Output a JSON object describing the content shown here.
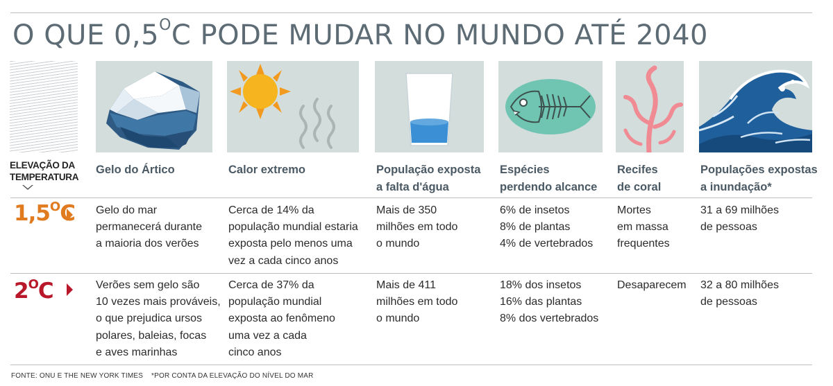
{
  "title": {
    "prefix": "O QUE 0,5",
    "sup": "O",
    "suffix": "C PODE MUDAR NO MUNDO ATÉ 2040"
  },
  "row_header": {
    "line1": "ELEVAÇÃO DA",
    "line2": "TEMPERATURA"
  },
  "columns": [
    {
      "line1": "Gelo do Ártico",
      "line2": "",
      "icon": "iceberg-icon"
    },
    {
      "line1": "Calor extremo",
      "line2": "",
      "icon": "sun-icon"
    },
    {
      "line1": "População exposta",
      "line2": "a falta d'água",
      "icon": "water-glass-icon"
    },
    {
      "line1": "Espécies",
      "line2": "perdendo alcance",
      "icon": "fish-skeleton-icon"
    },
    {
      "line1": "Recifes",
      "line2": "de coral",
      "icon": "coral-icon"
    },
    {
      "line1": "Populações expostas",
      "line2": "a inundação*",
      "icon": "wave-icon"
    }
  ],
  "rows": [
    {
      "label_num": "1,5",
      "label_sup": "O",
      "label_unit": "C",
      "color": "#e07b1f",
      "cells": [
        "Gelo do mar\npermanecerá durante\na maioria dos verões",
        "Cerca de 14% da\npopulação mundial estaria\nexposta pelo menos uma\nvez a cada cinco anos",
        "Mais de 350\nmilhões em todo\no mundo",
        "6% de insetos\n8% de plantas\n4% de vertebrados",
        "Mortes\nem massa\nfrequentes",
        "31 a 69 milhões\nde pessoas"
      ]
    },
    {
      "label_num": "2",
      "label_sup": "O",
      "label_unit": "C",
      "color": "#b8182a",
      "cells": [
        "Verões sem gelo são\n10 vezes mais prováveis,\no que prejudica ursos\npolares, baleias, focas\ne aves marinhas",
        "Cerca de 37% da\npopulação mundial\nexposta ao fenômeno\numa vez a cada\ncinco anos",
        "Mais de 411\nmilhões em todo\no mundo",
        "18% dos insetos\n16% das plantas\n8% dos vertebrados",
        "Desaparecem",
        "32 a 80 milhões\nde pessoas"
      ]
    }
  ],
  "footer": {
    "source": "FONTE: ONU E THE NEW YORK TIMES",
    "note": "*POR CONTA DA ELEVAÇÃO DO NÍVEL DO MAR"
  }
}
